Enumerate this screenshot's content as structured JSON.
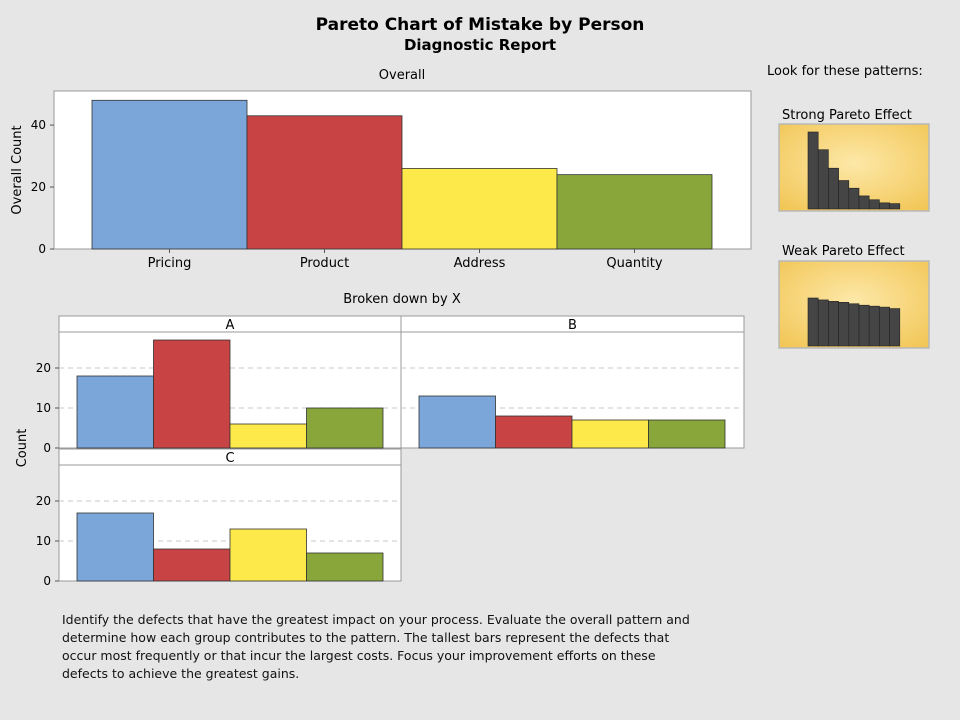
{
  "report": {
    "title": "Pareto Chart of Mistake by Person",
    "subtitle": "Diagnostic Report",
    "description": "Identify the defects that have the greatest impact on your process. Evaluate the overall pattern and determine how each group contributes to the pattern. The tallest bars represent the defects that occur most frequently or that incur the largest costs. Focus your improvement efforts on these defects to achieve the greatest gains."
  },
  "patterns": {
    "heading": "Look for these patterns:",
    "strong": {
      "label": "Strong Pareto Effect",
      "values": [
        10,
        7.7,
        5.3,
        3.7,
        2.7,
        1.7,
        1.2,
        0.8,
        0.7
      ]
    },
    "weak": {
      "label": "Weak Pareto Effect",
      "values": [
        10,
        9.6,
        9.3,
        9.1,
        8.8,
        8.5,
        8.3,
        8.1,
        7.8
      ]
    },
    "bar_color": "#454545",
    "bg_center": "#fde8a8",
    "bg_edge": "#f1c451"
  },
  "colors": {
    "Pricing": "#7aa6d9",
    "Product": "#c84444",
    "Address": "#fde94a",
    "Quantity": "#88a63a"
  },
  "chart_data": [
    {
      "type": "bar",
      "title": "Overall",
      "ylabel": "Overall Count",
      "categories": [
        "Pricing",
        "Product",
        "Address",
        "Quantity"
      ],
      "values": [
        48,
        43,
        26,
        24
      ],
      "ylim": [
        0,
        51
      ],
      "yticks": [
        0,
        20,
        40
      ],
      "grid": false
    },
    {
      "type": "bar",
      "title": "Broken down by X",
      "ylabel": "Count",
      "categories": [
        "Pricing",
        "Product",
        "Address",
        "Quantity"
      ],
      "ylim": [
        0,
        29
      ],
      "yticks": [
        0,
        10,
        20
      ],
      "grid": true,
      "panels": [
        {
          "name": "A",
          "values": [
            18,
            27,
            6,
            10
          ]
        },
        {
          "name": "B",
          "values": [
            13,
            8,
            7,
            7
          ]
        },
        {
          "name": "C",
          "values": [
            17,
            8,
            13,
            7
          ]
        }
      ]
    }
  ]
}
